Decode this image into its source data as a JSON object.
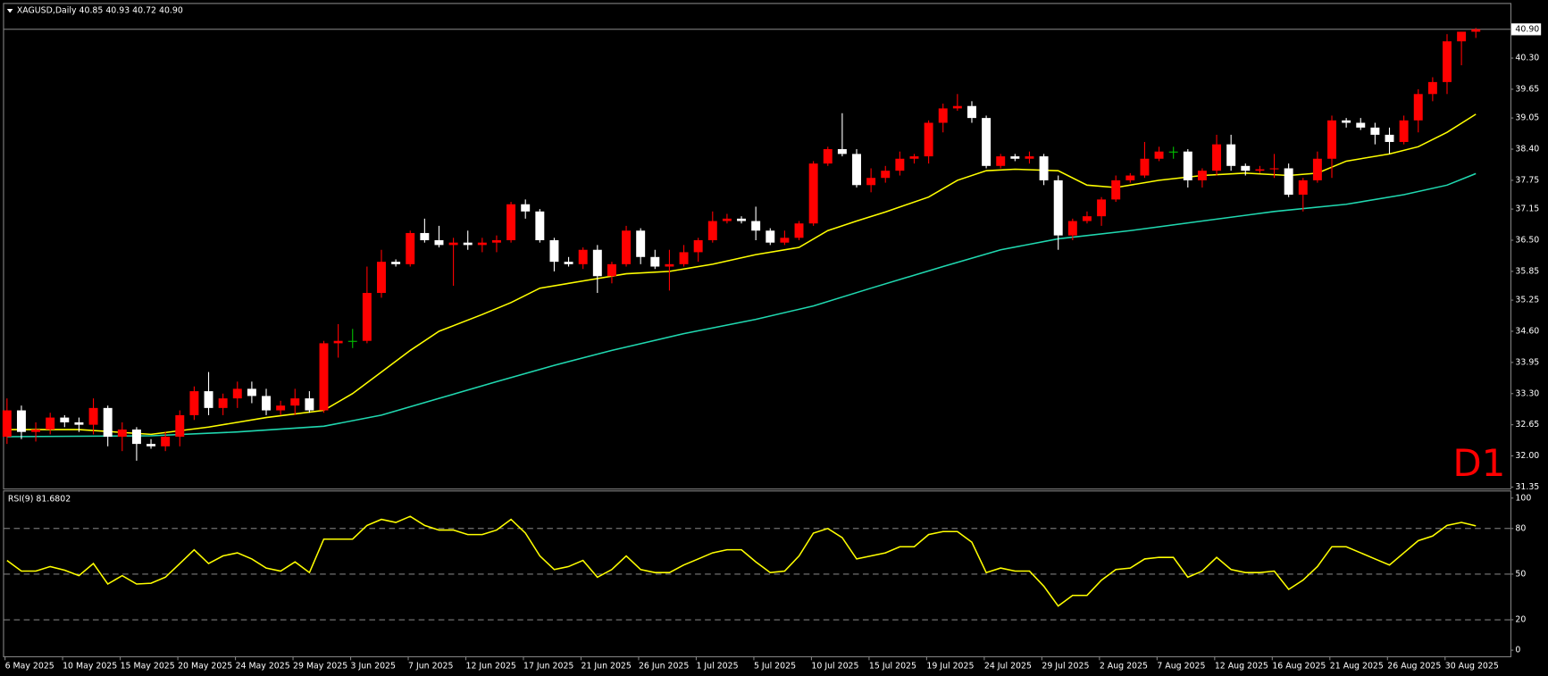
{
  "chart_data": [
    {
      "type": "candlestick",
      "title": "XAGUSD,Daily  40.85 40.93 40.72 40.90",
      "annotation": "D1",
      "annotation_color": "#ff0000",
      "categories": [
        "6 May 2025",
        null,
        null,
        null,
        "10 May 2025",
        null,
        null,
        null,
        "15 May 2025",
        null,
        null,
        null,
        "20 May 2025",
        null,
        null,
        null,
        "24 May 2025",
        null,
        null,
        null,
        "29 May 2025",
        null,
        null,
        null,
        "3 Jun 2025",
        null,
        null,
        null,
        "7 Jun 2025",
        null,
        null,
        null,
        "12 Jun 2025",
        null,
        null,
        null,
        "17 Jun 2025",
        null,
        null,
        null,
        "21 Jun 2025",
        null,
        null,
        null,
        "26 Jun 2025",
        null,
        null,
        null,
        "1 Jul 2025",
        null,
        null,
        null,
        "5 Jul 2025",
        null,
        null,
        null,
        "10 Jul 2025",
        null,
        null,
        null,
        "15 Jul 2025",
        null,
        null,
        null,
        "19 Jul 2025",
        null,
        null,
        null,
        "24 Jul 2025",
        null,
        null,
        null,
        "29 Jul 2025",
        null,
        null,
        null,
        "2 Aug 2025",
        null,
        null,
        null,
        "7 Aug 2025",
        null,
        null,
        null,
        "12 Aug 2025",
        null,
        null,
        null,
        "16 Aug 2025",
        null,
        null,
        null,
        "21 Aug 2025",
        null,
        null,
        null,
        "26 Aug 2025",
        null,
        null,
        null,
        "30 Aug 2025",
        null,
        null
      ],
      "open": [
        32.4,
        32.95,
        32.5,
        32.55,
        32.8,
        32.7,
        32.65,
        33.0,
        32.4,
        32.55,
        32.25,
        32.2,
        32.4,
        32.85,
        33.35,
        33.0,
        33.2,
        33.4,
        33.25,
        32.95,
        33.05,
        33.2,
        32.95,
        34.35,
        34.4,
        34.4,
        35.4,
        36.05,
        36.0,
        36.65,
        36.5,
        36.4,
        36.45,
        36.4,
        36.45,
        36.5,
        37.25,
        37.1,
        36.5,
        36.05,
        36.0,
        36.3,
        35.75,
        36.0,
        36.7,
        36.15,
        35.95,
        36.0,
        36.25,
        36.5,
        36.9,
        36.95,
        36.9,
        36.7,
        36.45,
        36.55,
        36.85,
        38.1,
        38.4,
        38.3,
        37.65,
        37.8,
        37.95,
        38.2,
        38.25,
        38.95,
        39.25,
        39.3,
        39.05,
        38.05,
        38.25,
        38.2,
        38.25,
        37.75,
        36.6,
        36.9,
        37.0,
        37.35,
        37.75,
        37.85,
        38.2,
        38.35,
        38.35,
        37.75,
        37.95,
        38.5,
        38.05,
        37.95,
        37.98,
        38.0,
        37.45,
        37.75,
        38.2,
        39.0,
        38.95,
        38.85,
        38.7,
        38.55,
        39.0,
        39.55,
        39.8,
        40.65,
        40.85
      ],
      "high": [
        33.2,
        33.05,
        32.7,
        32.9,
        32.85,
        32.8,
        33.2,
        33.05,
        32.7,
        32.6,
        32.35,
        32.5,
        32.95,
        33.45,
        33.75,
        33.3,
        33.55,
        33.55,
        33.4,
        33.15,
        33.4,
        33.35,
        34.4,
        34.75,
        34.65,
        35.95,
        36.3,
        36.1,
        36.7,
        36.95,
        36.8,
        36.55,
        36.7,
        36.55,
        36.6,
        37.3,
        37.35,
        37.15,
        36.55,
        36.15,
        36.35,
        36.4,
        36.05,
        36.8,
        36.75,
        36.3,
        36.3,
        36.4,
        36.55,
        37.1,
        37.05,
        37.0,
        37.2,
        36.75,
        36.7,
        36.9,
        38.15,
        38.45,
        39.15,
        38.4,
        38.0,
        38.05,
        38.35,
        38.3,
        39.0,
        39.35,
        39.55,
        39.4,
        39.1,
        38.3,
        38.3,
        38.35,
        38.3,
        37.85,
        36.95,
        37.1,
        37.4,
        37.85,
        37.9,
        38.55,
        38.45,
        38.45,
        38.4,
        38.0,
        38.7,
        38.7,
        38.1,
        38.05,
        38.3,
        38.1,
        37.8,
        38.35,
        39.1,
        39.05,
        39.05,
        38.95,
        38.85,
        39.1,
        39.65,
        39.9,
        40.8,
        40.85,
        40.93
      ],
      "low": [
        32.25,
        32.35,
        32.3,
        32.45,
        32.6,
        32.5,
        32.45,
        32.2,
        32.1,
        31.9,
        32.15,
        32.1,
        32.2,
        32.75,
        32.85,
        32.85,
        33.0,
        33.1,
        32.85,
        32.85,
        32.85,
        32.9,
        32.9,
        34.05,
        34.25,
        34.35,
        35.3,
        35.95,
        35.95,
        36.45,
        36.35,
        35.55,
        36.3,
        36.25,
        36.25,
        36.45,
        36.95,
        36.45,
        35.85,
        35.95,
        35.9,
        35.4,
        35.6,
        35.95,
        36.0,
        35.9,
        35.45,
        35.95,
        36.05,
        36.45,
        36.85,
        36.85,
        36.5,
        36.4,
        36.4,
        36.5,
        36.8,
        38.05,
        38.25,
        37.6,
        37.5,
        37.7,
        37.85,
        38.1,
        38.1,
        38.75,
        39.2,
        38.95,
        38.0,
        38.0,
        38.15,
        38.1,
        37.65,
        36.3,
        36.5,
        36.85,
        36.8,
        37.3,
        37.7,
        37.8,
        38.15,
        38.2,
        37.6,
        37.6,
        37.85,
        37.95,
        37.85,
        37.9,
        37.8,
        37.4,
        37.1,
        37.7,
        37.8,
        38.85,
        38.8,
        38.5,
        38.3,
        38.5,
        38.75,
        39.4,
        39.55,
        40.15,
        40.72
      ],
      "close": [
        32.95,
        32.5,
        32.55,
        32.8,
        32.7,
        32.65,
        33.0,
        32.4,
        32.55,
        32.25,
        32.2,
        32.4,
        32.85,
        33.35,
        33.0,
        33.2,
        33.4,
        33.25,
        32.95,
        33.05,
        33.2,
        32.95,
        34.35,
        34.4,
        34.4,
        35.4,
        36.05,
        36.0,
        36.65,
        36.5,
        36.4,
        36.45,
        36.4,
        36.45,
        36.5,
        37.25,
        37.1,
        36.5,
        36.05,
        36.0,
        36.3,
        35.75,
        36.0,
        36.7,
        36.15,
        35.95,
        36.0,
        36.25,
        36.5,
        36.9,
        36.95,
        36.9,
        36.7,
        36.45,
        36.55,
        36.85,
        38.1,
        38.4,
        38.3,
        37.65,
        37.8,
        37.95,
        38.2,
        38.25,
        38.95,
        39.25,
        39.3,
        39.05,
        38.05,
        38.25,
        38.2,
        38.25,
        37.75,
        36.6,
        36.9,
        37.0,
        37.35,
        37.75,
        37.85,
        38.2,
        38.35,
        38.35,
        37.75,
        37.95,
        38.5,
        38.05,
        37.95,
        37.98,
        38.0,
        37.45,
        37.75,
        38.2,
        39.0,
        38.95,
        38.85,
        38.7,
        38.55,
        39.0,
        39.55,
        39.8,
        40.65,
        40.85,
        40.9
      ],
      "up_color": "#ff0000",
      "down_color": "#ffffff",
      "doji_color": "#00c000",
      "series": [
        {
          "color": "#ffff00",
          "x": [
            0,
            5,
            10,
            14,
            18,
            22,
            24,
            26,
            28,
            30,
            33,
            35,
            37,
            40,
            43,
            46,
            49,
            52,
            55,
            57,
            59,
            61,
            64,
            66,
            68,
            70,
            73,
            75,
            77,
            80,
            83,
            86,
            89,
            91,
            93,
            96,
            98,
            100,
            102
          ],
          "values": [
            32.55,
            32.55,
            32.45,
            32.6,
            32.8,
            32.95,
            33.3,
            33.75,
            34.2,
            34.6,
            34.95,
            35.2,
            35.5,
            35.65,
            35.8,
            35.85,
            36.0,
            36.2,
            36.35,
            36.7,
            36.9,
            37.09,
            37.4,
            37.75,
            37.95,
            37.98,
            37.95,
            37.65,
            37.6,
            37.75,
            37.85,
            37.9,
            37.85,
            37.9,
            38.15,
            38.3,
            38.45,
            38.75,
            39.13
          ]
        },
        {
          "color": "#20d8b0",
          "x": [
            0,
            10,
            16,
            22,
            26,
            30,
            34,
            38,
            42,
            47,
            52,
            56,
            60,
            65,
            69,
            73,
            78,
            83,
            88,
            93,
            97,
            100,
            102
          ],
          "values": [
            32.4,
            32.42,
            32.5,
            32.62,
            32.85,
            33.2,
            33.55,
            33.89,
            34.2,
            34.55,
            34.85,
            35.13,
            35.5,
            35.95,
            36.3,
            36.53,
            36.7,
            36.9,
            37.1,
            37.25,
            37.45,
            37.65,
            37.89
          ]
        }
      ],
      "ylim": [
        31.32,
        41.45
      ],
      "yticks": [
        {
          "value": 40.3,
          "label": "40.30"
        },
        39.65,
        39.05,
        {
          "value": 38.4,
          "label": "38.40"
        },
        37.75,
        37.15,
        {
          "value": 36.5,
          "label": "36.50"
        },
        35.85,
        35.25,
        {
          "value": 34.6,
          "label": "34.60"
        },
        33.95,
        {
          "value": 33.3,
          "label": "33.30"
        },
        32.65,
        {
          "value": 32,
          "label": "32.00"
        },
        31.35
      ],
      "current_price": {
        "value": 40.9,
        "label": "40.90"
      }
    },
    {
      "type": "line",
      "title": "RSI(9) 81.6802",
      "series": [
        {
          "color": "#ffff00",
          "values": [
            59,
            52,
            52,
            55,
            52.6,
            49,
            57,
            43.5,
            49,
            43.5,
            44,
            48,
            57,
            66,
            57,
            62,
            64,
            60,
            54,
            52,
            58,
            51,
            73,
            73,
            73,
            82,
            86,
            84,
            88,
            82,
            79,
            79,
            76,
            76,
            79,
            86,
            77,
            62,
            53,
            55,
            59,
            48,
            53,
            62,
            53,
            51,
            51,
            56,
            60,
            64,
            66,
            66,
            58,
            51,
            52,
            62,
            77,
            80,
            74,
            60,
            62,
            64,
            68,
            68,
            76,
            78,
            78,
            71,
            51,
            54,
            52,
            52,
            42,
            29,
            36,
            36,
            46,
            53,
            54,
            60,
            61,
            61,
            48,
            52,
            61,
            53,
            51,
            51,
            52,
            40,
            46,
            55,
            68,
            68,
            64,
            60,
            56,
            64,
            72,
            75,
            82,
            84,
            81.68
          ]
        }
      ],
      "ylim": [
        -4,
        105
      ],
      "yticks": [
        100,
        80,
        50,
        20,
        0
      ],
      "levels": [
        80,
        50,
        20
      ]
    }
  ]
}
